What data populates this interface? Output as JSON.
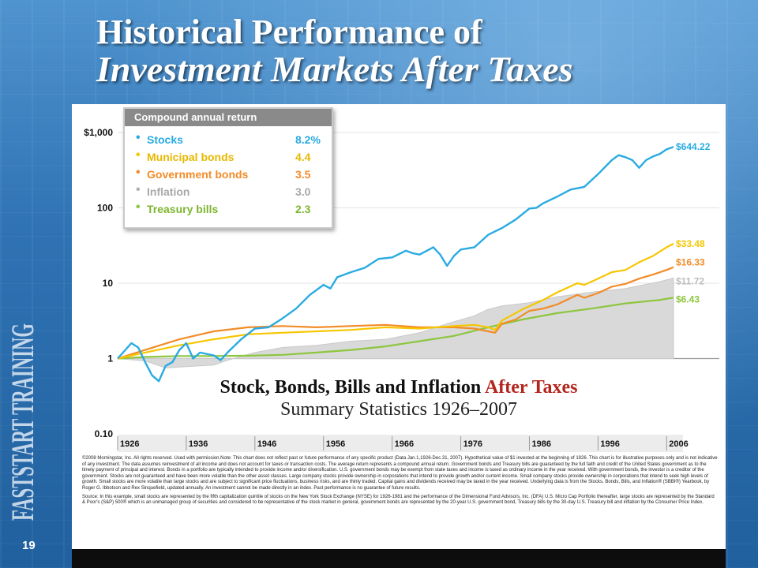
{
  "slide": {
    "title_line1": "Historical Performance of",
    "title_line2": "Investment Markets After Taxes",
    "page_number": "19",
    "brand_text": "FASTSTART TRAINING",
    "colors": {
      "background": "#2f73b4",
      "panel": "#ffffff",
      "accent_red": "#b3261e"
    }
  },
  "legend": {
    "header": "Compound annual return",
    "items": [
      {
        "name": "Stocks",
        "value": "8.2%",
        "color": "#29abe2"
      },
      {
        "name": "Municipal bonds",
        "value": "4.4",
        "color": "#f7c600"
      },
      {
        "name": "Government bonds",
        "value": "3.5",
        "color": "#f28c28"
      },
      {
        "name": "Inflation",
        "value": "3.0",
        "color": "#bdbdbd"
      },
      {
        "name": "Treasury bills",
        "value": "2.3",
        "color": "#8dc63f"
      }
    ]
  },
  "subtitle": {
    "line1_main": "Stock, Bonds, Bills and Inflation",
    "line1_accent": "After Taxes",
    "line2": "Summary Statistics 1926–2007"
  },
  "footnote": {
    "p1": "©2008 Morningstar, Inc. All rights reserved. Used with permission.Note: This chart does not reflect past or future performance of any specific product (Data Jan.1,1926-Dec.31, 2007). Hypothetical value of $1 invested at the beginning of 1926. This chart is for illustrative purposes only and is not indicative of any investment. The data assumes reinvestment of all income and does not account for taxes or transaction costs. The average return represents a compound annual return. Government bonds and Treasury bills are guaranteed by the full faith and credit of the United States government as to the timely payment of principal and interest. Bonds in a portfolio are typically intended to provide income and/or diversification. U.S. government bonds may be exempt from state taxes and income is taxed as ordinary income in the year received. With government bonds, the investor is a creditor of the government. Stocks are not guaranteed and have been more volatile than the other asset classes. Large company stocks provide ownership in corporations that intend to provide growth and/or current income. Small company stocks provide ownership in corporations that intend to seek high levels of growth. Small stocks are more volatile than large stocks and are subject to significant price fluctuations, business risks, and are thinly traded. Capital gains and dividends received may be taxed in the year received. Underlying data is from the Stocks, Bonds, Bills, and Inflation® (SBBI®) Yearbook, by Roger G. Ibbotson and Rex Sinquefield, updated annually. An investment cannot be made directly in an index. Past performance is no guarantee of future results.",
    "p2": "Source: In this example, small stocks are represented by the fifth capitalization quintile of stocks on the New York Stock Exchange (NYSE) for 1926-1981 and the performance of the Dimensional Fund Advisors, Inc. (DFA) U.S. Micro Cap Portfolio thereafter, large stocks are represented by the Standard & Poor's (S&P) 500® which is an unmanaged group of securities and considered to be representative of the stock market in general, government bonds are represented by the 20-year U.S. government bond, Treasury bills by the 30-day U.S. Treasury bill and inflation by the Consumer Price Index."
  },
  "chart_data": {
    "type": "line",
    "y_scale": "log",
    "ylim": [
      0.1,
      1000
    ],
    "xlim": [
      1926,
      2007
    ],
    "y_tick_labels": [
      "$1,000",
      "100",
      "10",
      "1",
      "0.10"
    ],
    "y_tick_values": [
      1000,
      100,
      10,
      1,
      0.1
    ],
    "x_tick_labels": [
      "1926",
      "1936",
      "1946",
      "1956",
      "1966",
      "1976",
      "1986",
      "1996",
      "2006"
    ],
    "x_tick_values": [
      1926,
      1936,
      1946,
      1956,
      1966,
      1976,
      1986,
      1996,
      2006
    ],
    "grid": "horizontal",
    "series": [
      {
        "name": "Stocks",
        "color": "#29abe2",
        "end_label": "$644.22",
        "points": [
          [
            1926,
            1
          ],
          [
            1928,
            1.6
          ],
          [
            1929,
            1.4
          ],
          [
            1930,
            0.9
          ],
          [
            1931,
            0.6
          ],
          [
            1932,
            0.5
          ],
          [
            1933,
            0.8
          ],
          [
            1934,
            0.9
          ],
          [
            1935,
            1.3
          ],
          [
            1936,
            1.6
          ],
          [
            1937,
            1.0
          ],
          [
            1938,
            1.2
          ],
          [
            1940,
            1.1
          ],
          [
            1941,
            0.95
          ],
          [
            1942,
            1.2
          ],
          [
            1944,
            1.8
          ],
          [
            1946,
            2.5
          ],
          [
            1948,
            2.6
          ],
          [
            1950,
            3.4
          ],
          [
            1952,
            4.6
          ],
          [
            1954,
            7.0
          ],
          [
            1956,
            9.5
          ],
          [
            1957,
            8.5
          ],
          [
            1958,
            12
          ],
          [
            1960,
            14
          ],
          [
            1962,
            16
          ],
          [
            1964,
            21
          ],
          [
            1966,
            22
          ],
          [
            1968,
            27
          ],
          [
            1969,
            25
          ],
          [
            1970,
            24
          ],
          [
            1972,
            30
          ],
          [
            1973,
            24
          ],
          [
            1974,
            17
          ],
          [
            1975,
            23
          ],
          [
            1976,
            28
          ],
          [
            1978,
            30
          ],
          [
            1980,
            44
          ],
          [
            1982,
            54
          ],
          [
            1984,
            70
          ],
          [
            1986,
            98
          ],
          [
            1987,
            100
          ],
          [
            1988,
            115
          ],
          [
            1990,
            140
          ],
          [
            1992,
            175
          ],
          [
            1994,
            190
          ],
          [
            1996,
            280
          ],
          [
            1998,
            430
          ],
          [
            1999,
            500
          ],
          [
            2000,
            470
          ],
          [
            2001,
            430
          ],
          [
            2002,
            340
          ],
          [
            2003,
            430
          ],
          [
            2004,
            480
          ],
          [
            2005,
            520
          ],
          [
            2006,
            600
          ],
          [
            2007,
            644.22
          ]
        ]
      },
      {
        "name": "Municipal bonds",
        "color": "#f7c600",
        "end_label": "$33.48",
        "points": [
          [
            1926,
            1
          ],
          [
            1930,
            1.2
          ],
          [
            1935,
            1.5
          ],
          [
            1940,
            1.8
          ],
          [
            1945,
            2.1
          ],
          [
            1950,
            2.2
          ],
          [
            1955,
            2.3
          ],
          [
            1960,
            2.4
          ],
          [
            1965,
            2.6
          ],
          [
            1970,
            2.5
          ],
          [
            1975,
            2.7
          ],
          [
            1978,
            2.8
          ],
          [
            1980,
            2.6
          ],
          [
            1981,
            2.4
          ],
          [
            1982,
            3.2
          ],
          [
            1985,
            4.5
          ],
          [
            1988,
            6.0
          ],
          [
            1990,
            7.5
          ],
          [
            1993,
            10
          ],
          [
            1994,
            9.5
          ],
          [
            1996,
            11.5
          ],
          [
            1998,
            14
          ],
          [
            2000,
            15
          ],
          [
            2002,
            19
          ],
          [
            2004,
            23
          ],
          [
            2006,
            30
          ],
          [
            2007,
            33.48
          ]
        ]
      },
      {
        "name": "Government bonds",
        "color": "#f28c28",
        "end_label": "$16.33",
        "points": [
          [
            1926,
            1
          ],
          [
            1930,
            1.3
          ],
          [
            1935,
            1.8
          ],
          [
            1940,
            2.3
          ],
          [
            1945,
            2.6
          ],
          [
            1950,
            2.7
          ],
          [
            1955,
            2.6
          ],
          [
            1960,
            2.7
          ],
          [
            1965,
            2.8
          ],
          [
            1970,
            2.6
          ],
          [
            1975,
            2.6
          ],
          [
            1978,
            2.5
          ],
          [
            1980,
            2.3
          ],
          [
            1981,
            2.2
          ],
          [
            1982,
            2.9
          ],
          [
            1984,
            3.3
          ],
          [
            1986,
            4.3
          ],
          [
            1988,
            4.6
          ],
          [
            1990,
            5.2
          ],
          [
            1993,
            7.0
          ],
          [
            1994,
            6.4
          ],
          [
            1996,
            7.4
          ],
          [
            1998,
            9.0
          ],
          [
            2000,
            9.8
          ],
          [
            2002,
            11.5
          ],
          [
            2004,
            13
          ],
          [
            2006,
            15
          ],
          [
            2007,
            16.33
          ]
        ]
      },
      {
        "name": "Inflation",
        "color": "#bdbdbd",
        "end_label": "$11.72",
        "points": [
          [
            1926,
            1
          ],
          [
            1930,
            0.93
          ],
          [
            1933,
            0.75
          ],
          [
            1936,
            0.78
          ],
          [
            1940,
            0.82
          ],
          [
            1942,
            0.95
          ],
          [
            1946,
            1.2
          ],
          [
            1948,
            1.3
          ],
          [
            1950,
            1.4
          ],
          [
            1955,
            1.5
          ],
          [
            1960,
            1.7
          ],
          [
            1965,
            1.8
          ],
          [
            1970,
            2.2
          ],
          [
            1974,
            2.9
          ],
          [
            1978,
            3.7
          ],
          [
            1980,
            4.5
          ],
          [
            1982,
            5.0
          ],
          [
            1986,
            5.5
          ],
          [
            1990,
            6.6
          ],
          [
            1995,
            7.6
          ],
          [
            2000,
            8.5
          ],
          [
            2005,
            10.5
          ],
          [
            2007,
            11.72
          ]
        ]
      },
      {
        "name": "Treasury bills",
        "color": "#8dc63f",
        "end_label": "$6.43",
        "points": [
          [
            1926,
            1
          ],
          [
            1930,
            1.05
          ],
          [
            1935,
            1.08
          ],
          [
            1940,
            1.08
          ],
          [
            1945,
            1.09
          ],
          [
            1950,
            1.12
          ],
          [
            1955,
            1.2
          ],
          [
            1960,
            1.3
          ],
          [
            1965,
            1.45
          ],
          [
            1970,
            1.7
          ],
          [
            1975,
            2.0
          ],
          [
            1980,
            2.6
          ],
          [
            1985,
            3.3
          ],
          [
            1990,
            4.0
          ],
          [
            1995,
            4.6
          ],
          [
            2000,
            5.4
          ],
          [
            2005,
            6.0
          ],
          [
            2007,
            6.43
          ]
        ]
      }
    ]
  }
}
